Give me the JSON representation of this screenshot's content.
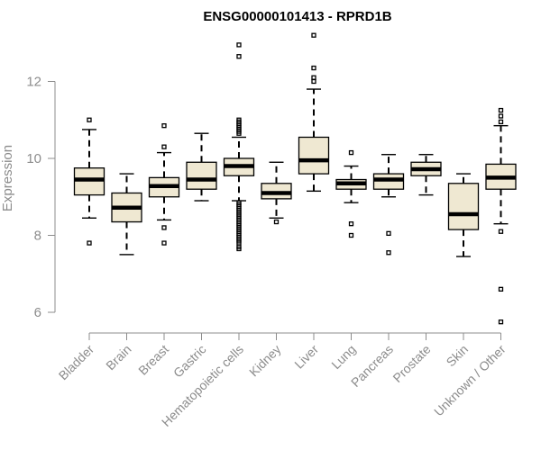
{
  "chart_data": {
    "type": "boxplot",
    "title": "ENSG00000101413 - RPRD1B",
    "xlabel": "",
    "ylabel": "Expression",
    "ylim": [
      5.6,
      13.4
    ],
    "yticks": [
      6,
      8,
      10,
      12
    ],
    "grid": false,
    "box_color": "#efe8d2",
    "axis_color": "#8c8c8c",
    "categories": [
      "Bladder",
      "Brain",
      "Breast",
      "Gastric",
      "Hematopoietic cells",
      "Kidney",
      "Liver",
      "Lung",
      "Pancreas",
      "Prostate",
      "Skin",
      "Unknown / Other"
    ],
    "boxes": [
      {
        "whislo": 8.45,
        "q1": 9.05,
        "med": 9.45,
        "q3": 9.75,
        "whishi": 10.75,
        "fliers": [
          7.8,
          11.0
        ]
      },
      {
        "whislo": 7.5,
        "q1": 8.35,
        "med": 8.72,
        "q3": 9.1,
        "whishi": 9.6,
        "fliers": []
      },
      {
        "whislo": 8.4,
        "q1": 9.0,
        "med": 9.28,
        "q3": 9.5,
        "whishi": 10.15,
        "fliers": [
          10.85,
          10.3,
          8.2,
          7.8
        ]
      },
      {
        "whislo": 8.9,
        "q1": 9.2,
        "med": 9.45,
        "q3": 9.9,
        "whishi": 10.65,
        "fliers": []
      },
      {
        "whislo": 8.9,
        "q1": 9.55,
        "med": 9.8,
        "q3": 10.0,
        "whishi": 10.55,
        "fliers": [
          12.95,
          12.65,
          11.0,
          10.95,
          10.9,
          10.85,
          10.8,
          10.75,
          10.7,
          10.65,
          8.85,
          8.8,
          8.75,
          8.7,
          8.65,
          8.6,
          8.55,
          8.5,
          8.45,
          8.4,
          8.35,
          8.3,
          8.25,
          8.2,
          8.15,
          8.1,
          8.05,
          8.0,
          7.95,
          7.9,
          7.85,
          7.8,
          7.7,
          7.65
        ]
      },
      {
        "whislo": 8.45,
        "q1": 8.95,
        "med": 9.1,
        "q3": 9.35,
        "whishi": 9.9,
        "fliers": [
          8.35
        ]
      },
      {
        "whislo": 9.15,
        "q1": 9.6,
        "med": 9.95,
        "q3": 10.55,
        "whishi": 11.8,
        "fliers": [
          13.2,
          12.35,
          12.1,
          12.0
        ]
      },
      {
        "whislo": 8.85,
        "q1": 9.2,
        "med": 9.35,
        "q3": 9.45,
        "whishi": 9.8,
        "fliers": [
          10.15,
          8.3,
          8.0
        ]
      },
      {
        "whislo": 9.0,
        "q1": 9.2,
        "med": 9.45,
        "q3": 9.6,
        "whishi": 10.1,
        "fliers": [
          8.05,
          7.55
        ]
      },
      {
        "whislo": 9.05,
        "q1": 9.55,
        "med": 9.72,
        "q3": 9.9,
        "whishi": 10.1,
        "fliers": []
      },
      {
        "whislo": 7.45,
        "q1": 8.15,
        "med": 8.55,
        "q3": 9.35,
        "whishi": 9.6,
        "fliers": []
      },
      {
        "whislo": 8.3,
        "q1": 9.2,
        "med": 9.5,
        "q3": 9.85,
        "whishi": 10.85,
        "fliers": [
          11.25,
          11.1,
          10.95,
          8.1,
          6.6,
          5.75
        ]
      }
    ]
  }
}
